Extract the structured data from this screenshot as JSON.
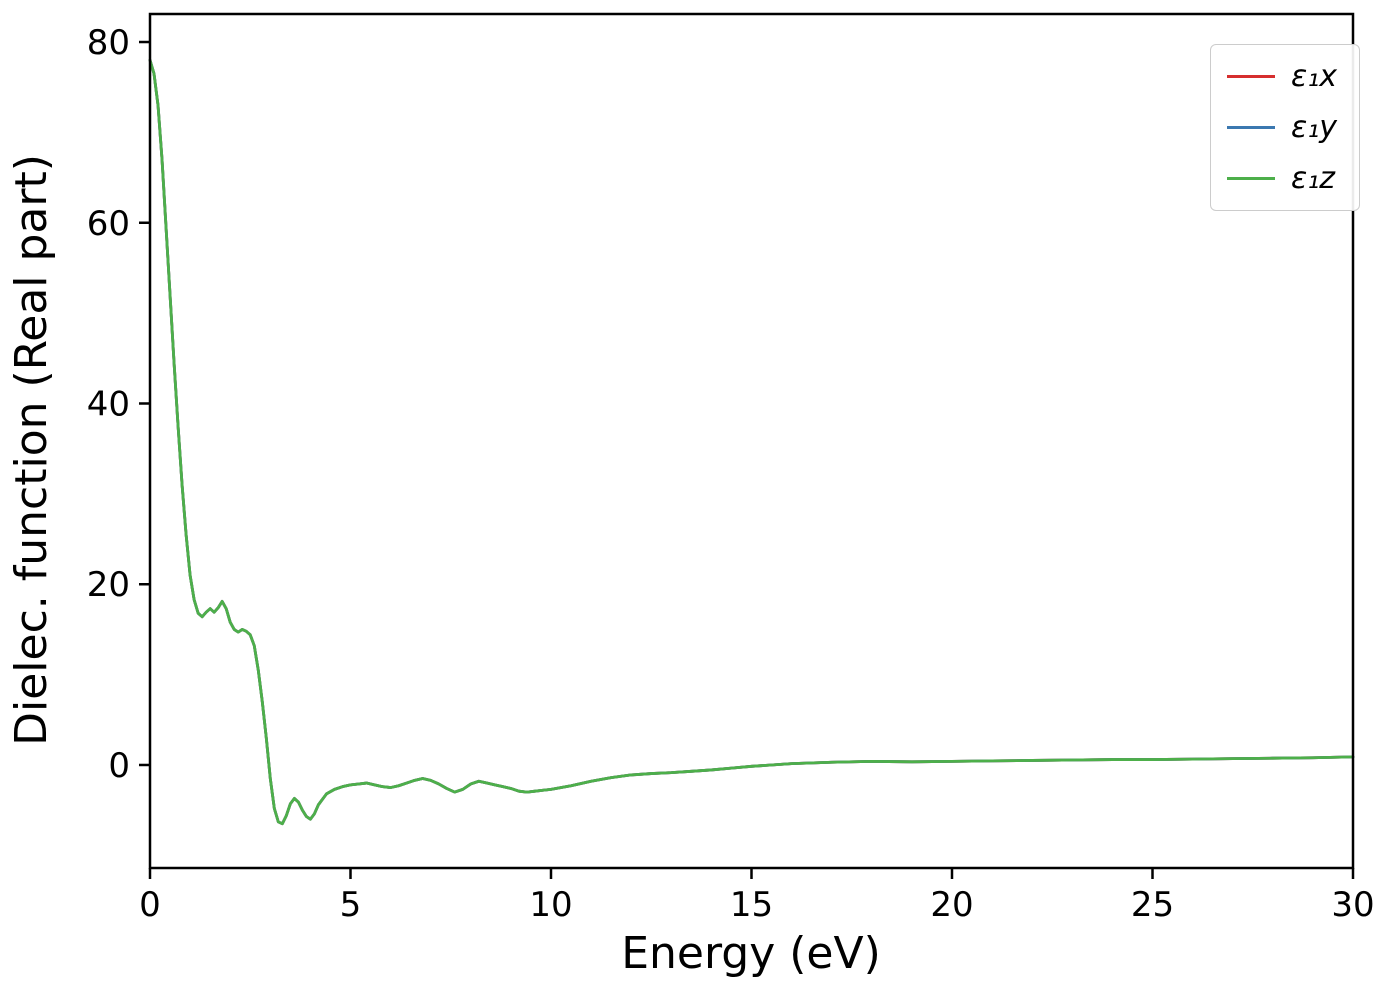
{
  "figure": {
    "background": "#ffffff",
    "frame_color": "#000000"
  },
  "legend": {
    "position": "upper right",
    "items": [
      {
        "label": "ε₁x",
        "color": "#d62f2f"
      },
      {
        "label": "ε₁y",
        "color": "#3b78b0"
      },
      {
        "label": "ε₁z",
        "color": "#4daf4a"
      }
    ]
  },
  "chart_data": {
    "type": "line",
    "title": "",
    "xlabel": "Energy (eV)",
    "ylabel": "Dielec. function (Real part)",
    "xlim": [
      0,
      30
    ],
    "ylim": [
      -11.4,
      83.1
    ],
    "x_ticks": [
      0,
      5,
      10,
      15,
      20,
      25,
      30
    ],
    "y_ticks": [
      0,
      20,
      40,
      60,
      80
    ],
    "grid": false,
    "legend_position": "upper right",
    "curves_overlap": true,
    "note": "All three curves (x, y, z components) coincide; only the last-drawn green curve is visible.",
    "x": [
      0,
      0.1,
      0.2,
      0.3,
      0.4,
      0.5,
      0.6,
      0.7,
      0.8,
      0.9,
      1,
      1.1,
      1.2,
      1.3,
      1.4,
      1.5,
      1.6,
      1.7,
      1.8,
      1.9,
      2,
      2.1,
      2.2,
      2.3,
      2.4,
      2.5,
      2.6,
      2.7,
      2.8,
      2.9,
      3,
      3.1,
      3.2,
      3.3,
      3.4,
      3.5,
      3.6,
      3.7,
      3.8,
      3.9,
      4,
      4.1,
      4.2,
      4.4,
      4.6,
      4.8,
      5,
      5.2,
      5.4,
      5.6,
      5.8,
      6,
      6.2,
      6.4,
      6.6,
      6.8,
      7,
      7.2,
      7.4,
      7.6,
      7.8,
      8,
      8.2,
      8.4,
      8.6,
      8.8,
      9,
      9.2,
      9.4,
      9.6,
      9.8,
      10,
      10.5,
      11,
      11.5,
      12,
      12.5,
      13,
      13.5,
      14,
      14.5,
      15,
      16,
      17,
      18,
      19,
      20,
      21,
      22,
      23,
      24,
      25,
      26,
      27,
      28,
      29,
      30
    ],
    "series": [
      {
        "name": "ε₁x",
        "color": "#d62f2f",
        "values": [
          78,
          76.5,
          73,
          67,
          59.5,
          52,
          44.5,
          37.5,
          31,
          25.5,
          21,
          18.3,
          16.8,
          16.4,
          16.9,
          17.3,
          16.9,
          17.4,
          18.1,
          17.3,
          15.8,
          15,
          14.7,
          15,
          14.8,
          14.4,
          13.2,
          10.5,
          7,
          3,
          -1.5,
          -4.8,
          -6.3,
          -6.5,
          -5.6,
          -4.3,
          -3.7,
          -4.1,
          -5,
          -5.7,
          -6,
          -5.4,
          -4.4,
          -3.2,
          -2.7,
          -2.4,
          -2.2,
          -2.1,
          -2,
          -2.2,
          -2.4,
          -2.5,
          -2.3,
          -2,
          -1.7,
          -1.5,
          -1.7,
          -2.1,
          -2.6,
          -3,
          -2.7,
          -2.1,
          -1.8,
          -2,
          -2.2,
          -2.4,
          -2.6,
          -2.9,
          -3,
          -2.9,
          -2.8,
          -2.7,
          -2.3,
          -1.8,
          -1.4,
          -1.1,
          -0.95,
          -0.85,
          -0.7,
          -0.55,
          -0.35,
          -0.15,
          0.15,
          0.3,
          0.4,
          0.35,
          0.4,
          0.45,
          0.5,
          0.55,
          0.6,
          0.6,
          0.65,
          0.7,
          0.75,
          0.8,
          0.9
        ]
      },
      {
        "name": "ε₁y",
        "color": "#3b78b0",
        "values": [
          78,
          76.5,
          73,
          67,
          59.5,
          52,
          44.5,
          37.5,
          31,
          25.5,
          21,
          18.3,
          16.8,
          16.4,
          16.9,
          17.3,
          16.9,
          17.4,
          18.1,
          17.3,
          15.8,
          15,
          14.7,
          15,
          14.8,
          14.4,
          13.2,
          10.5,
          7,
          3,
          -1.5,
          -4.8,
          -6.3,
          -6.5,
          -5.6,
          -4.3,
          -3.7,
          -4.1,
          -5,
          -5.7,
          -6,
          -5.4,
          -4.4,
          -3.2,
          -2.7,
          -2.4,
          -2.2,
          -2.1,
          -2,
          -2.2,
          -2.4,
          -2.5,
          -2.3,
          -2,
          -1.7,
          -1.5,
          -1.7,
          -2.1,
          -2.6,
          -3,
          -2.7,
          -2.1,
          -1.8,
          -2,
          -2.2,
          -2.4,
          -2.6,
          -2.9,
          -3,
          -2.9,
          -2.8,
          -2.7,
          -2.3,
          -1.8,
          -1.4,
          -1.1,
          -0.95,
          -0.85,
          -0.7,
          -0.55,
          -0.35,
          -0.15,
          0.15,
          0.3,
          0.4,
          0.35,
          0.4,
          0.45,
          0.5,
          0.55,
          0.6,
          0.6,
          0.65,
          0.7,
          0.75,
          0.8,
          0.9
        ]
      },
      {
        "name": "ε₁z",
        "color": "#4daf4a",
        "values": [
          78,
          76.5,
          73,
          67,
          59.5,
          52,
          44.5,
          37.5,
          31,
          25.5,
          21,
          18.3,
          16.8,
          16.4,
          16.9,
          17.3,
          16.9,
          17.4,
          18.1,
          17.3,
          15.8,
          15,
          14.7,
          15,
          14.8,
          14.4,
          13.2,
          10.5,
          7,
          3,
          -1.5,
          -4.8,
          -6.3,
          -6.5,
          -5.6,
          -4.3,
          -3.7,
          -4.1,
          -5,
          -5.7,
          -6,
          -5.4,
          -4.4,
          -3.2,
          -2.7,
          -2.4,
          -2.2,
          -2.1,
          -2,
          -2.2,
          -2.4,
          -2.5,
          -2.3,
          -2,
          -1.7,
          -1.5,
          -1.7,
          -2.1,
          -2.6,
          -3,
          -2.7,
          -2.1,
          -1.8,
          -2,
          -2.2,
          -2.4,
          -2.6,
          -2.9,
          -3,
          -2.9,
          -2.8,
          -2.7,
          -2.3,
          -1.8,
          -1.4,
          -1.1,
          -0.95,
          -0.85,
          -0.7,
          -0.55,
          -0.35,
          -0.15,
          0.15,
          0.3,
          0.4,
          0.35,
          0.4,
          0.45,
          0.5,
          0.55,
          0.6,
          0.6,
          0.65,
          0.7,
          0.75,
          0.8,
          0.9
        ]
      }
    ]
  }
}
